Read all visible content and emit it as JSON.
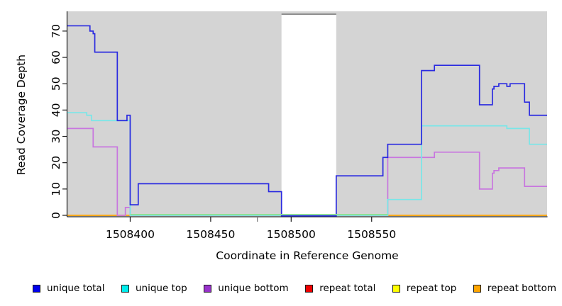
{
  "chart_data": {
    "type": "line",
    "subtype": "step-coverage",
    "title": "",
    "xlabel": "Coordinate in Reference Genome",
    "ylabel": "Read Coverage Depth",
    "xlim": [
      1508361,
      1508659
    ],
    "ylim": [
      0,
      77.5
    ],
    "x_ticks": [
      1508400,
      1508450,
      1508500,
      1508550
    ],
    "extra_unlabeled_tick_x": 1508479,
    "y_ticks": [
      0,
      10,
      20,
      30,
      40,
      50,
      60,
      70
    ],
    "grid": false,
    "legend_position": "bottom",
    "colors": {
      "plot_bg": "#d4d4d4",
      "axis": "#1a1a1a",
      "gap_fill": "#ffffff",
      "gap_top_border": "#8f8f8f"
    },
    "gap_region": {
      "from": 1508494,
      "to": 1508528
    },
    "series": [
      {
        "name": "repeat total",
        "line_color": "#e00000",
        "points": [
          [
            1508361,
            0
          ]
        ]
      },
      {
        "name": "repeat top",
        "line_color": "#f5f500",
        "points": [
          [
            1508361,
            0
          ]
        ]
      },
      {
        "name": "repeat bottom",
        "line_color": "#ffa51e",
        "points": [
          [
            1508361,
            0
          ]
        ]
      },
      {
        "name": "unique bottom",
        "line_color": "#c876df",
        "points": [
          [
            1508361,
            33
          ],
          [
            1508377,
            26
          ],
          [
            1508392,
            0
          ],
          [
            1508397,
            3
          ],
          [
            1508400,
            0
          ],
          [
            1508560,
            22
          ],
          [
            1508589,
            24
          ],
          [
            1508617,
            10
          ],
          [
            1508625,
            16
          ],
          [
            1508626,
            17
          ],
          [
            1508629,
            18
          ],
          [
            1508645,
            11
          ]
        ]
      },
      {
        "name": "unique top",
        "line_color": "#79e6e8",
        "points": [
          [
            1508361,
            39
          ],
          [
            1508373,
            38
          ],
          [
            1508376,
            36
          ],
          [
            1508400,
            0
          ],
          [
            1508560,
            6
          ],
          [
            1508581,
            34
          ],
          [
            1508634,
            33
          ],
          [
            1508648,
            27
          ]
        ]
      },
      {
        "name": "unique total",
        "line_color": "#2a2ae0",
        "points": [
          [
            1508361,
            72
          ],
          [
            1508375,
            70
          ],
          [
            1508377,
            69
          ],
          [
            1508378,
            62
          ],
          [
            1508392,
            36
          ],
          [
            1508398,
            38
          ],
          [
            1508400,
            4
          ],
          [
            1508405,
            12
          ],
          [
            1508486,
            9
          ],
          [
            1508494,
            -0.2
          ],
          [
            1508528,
            15
          ],
          [
            1508557,
            22
          ],
          [
            1508560,
            27
          ],
          [
            1508581,
            55
          ],
          [
            1508589,
            57
          ],
          [
            1508617,
            42
          ],
          [
            1508625,
            48
          ],
          [
            1508626,
            49
          ],
          [
            1508629,
            50
          ],
          [
            1508634,
            49
          ],
          [
            1508636,
            50
          ],
          [
            1508645,
            43
          ],
          [
            1508648,
            38
          ]
        ]
      }
    ],
    "overlays": [
      {
        "name": "unique-top-zero-overlap",
        "color": "#8fe08f",
        "from": 1508400,
        "to": 1508560,
        "value": 0.3
      }
    ],
    "legend": [
      {
        "label": "unique total",
        "color": "#0000ee"
      },
      {
        "label": "unique top",
        "color": "#00eeee"
      },
      {
        "label": "unique bottom",
        "color": "#9932cc"
      },
      {
        "label": "repeat total",
        "color": "#ee0000"
      },
      {
        "label": "repeat top",
        "color": "#ffff00"
      },
      {
        "label": "repeat bottom",
        "color": "#ffa500"
      }
    ]
  }
}
